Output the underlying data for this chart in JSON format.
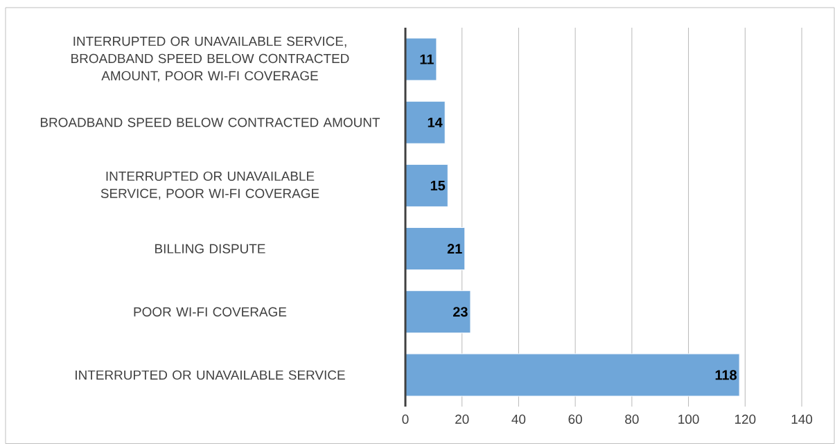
{
  "chart_data": {
    "type": "bar",
    "orientation": "horizontal",
    "categories": [
      "INTERRUPTED OR UNAVAILABLE SERVICE, BROADBAND SPEED BELOW CONTRACTED AMOUNT, POOR WI-FI COVERAGE",
      "BROADBAND SPEED BELOW CONTRACTED AMOUNT",
      "INTERRUPTED OR UNAVAILABLE SERVICE, POOR WI-FI COVERAGE",
      "BILLING DISPUTE",
      "POOR WI-FI COVERAGE",
      "INTERRUPTED OR UNAVAILABLE SERVICE"
    ],
    "values": [
      11,
      14,
      15,
      21,
      23,
      118
    ],
    "color": "#6fa6d9",
    "xlim": [
      0,
      140
    ],
    "xticks": [
      0,
      20,
      40,
      60,
      80,
      100,
      120,
      140
    ],
    "grid": "x",
    "data_labels": true
  }
}
